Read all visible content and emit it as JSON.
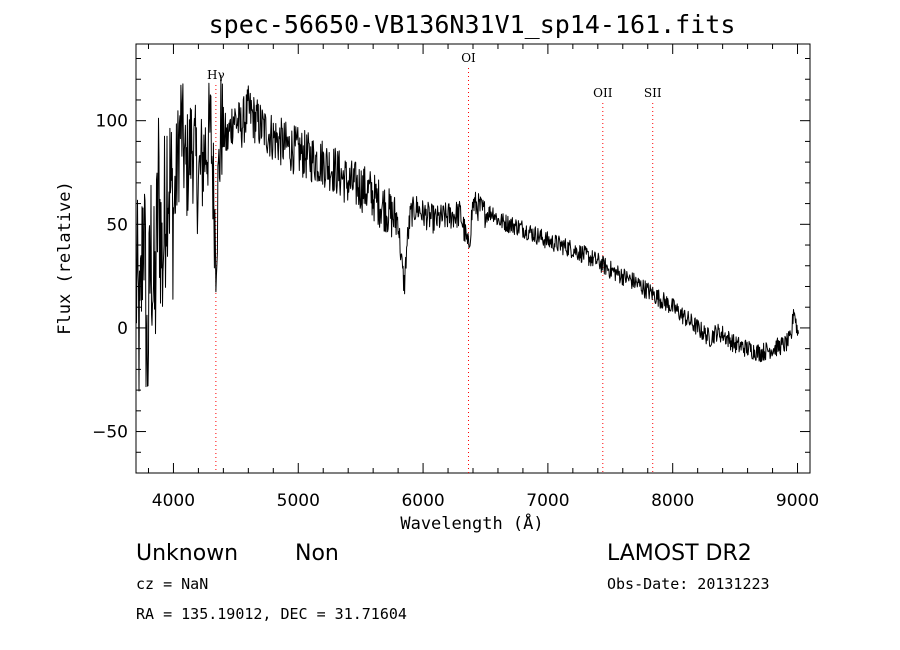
{
  "chart_data": {
    "type": "line",
    "title": "spec-56650-VB136N31V1_sp14-161.fits",
    "xlabel": "Wavelength (Å)",
    "ylabel": "Flux (relative)",
    "xlim": [
      3700,
      9100
    ],
    "ylim": [
      -70,
      137
    ],
    "xticks": [
      4000,
      5000,
      6000,
      7000,
      8000,
      9000
    ],
    "yticks": [
      -50,
      0,
      50,
      100
    ],
    "grid": false,
    "line_color": "#000000",
    "marker_color": "#ff0000",
    "spectral_lines": [
      {
        "label": "Hγ",
        "x": 4340
      },
      {
        "label": "OI",
        "x": 6364
      },
      {
        "label": "OII",
        "x": 7440
      },
      {
        "label": "SII",
        "x": 7840
      }
    ],
    "series": [
      {
        "x": [
          3710,
          3730,
          3760,
          3790,
          3820,
          3850,
          3880,
          3910,
          3950,
          4000,
          4060,
          4100,
          4150,
          4200,
          4250,
          4300,
          4340,
          4380,
          4430,
          4480,
          4540,
          4600,
          4660,
          4720,
          4800,
          4900,
          5000,
          5100,
          5200,
          5300,
          5400,
          5500,
          5580,
          5620,
          5660,
          5700,
          5750,
          5800,
          5830,
          5850,
          5870,
          5900,
          5950,
          6000,
          6100,
          6200,
          6300,
          6364,
          6400,
          6450,
          6500,
          6560,
          6600,
          6700,
          6800,
          6900,
          7000,
          7100,
          7200,
          7300,
          7400,
          7500,
          7600,
          7700,
          7800,
          7900,
          8000,
          8100,
          8200,
          8300,
          8350,
          8400,
          8500,
          8600,
          8700,
          8800,
          8900,
          8950,
          8970,
          9000
        ],
        "y": [
          20,
          -10,
          60,
          -20,
          40,
          10,
          70,
          30,
          80,
          55,
          100,
          75,
          90,
          70,
          85,
          95,
          40,
          98,
          90,
          102,
          97,
          105,
          100,
          96,
          92,
          88,
          85,
          82,
          80,
          76,
          70,
          68,
          65,
          62,
          60,
          58,
          54,
          52,
          30,
          20,
          40,
          55,
          58,
          55,
          52,
          54,
          55,
          38,
          60,
          58,
          55,
          56,
          52,
          50,
          48,
          45,
          42,
          40,
          38,
          35,
          32,
          28,
          25,
          22,
          18,
          14,
          10,
          5,
          0,
          -5,
          -2,
          -3,
          -8,
          -10,
          -12,
          -10,
          -8,
          -5,
          10,
          -2
        ]
      }
    ]
  },
  "info": {
    "object_class": "Unknown",
    "subclass": "Non",
    "survey": "LAMOST DR2",
    "redshift": "cz = NaN",
    "obs_date": "Obs-Date: 20131223",
    "coords": "RA = 135.19012, DEC =  31.71604"
  }
}
